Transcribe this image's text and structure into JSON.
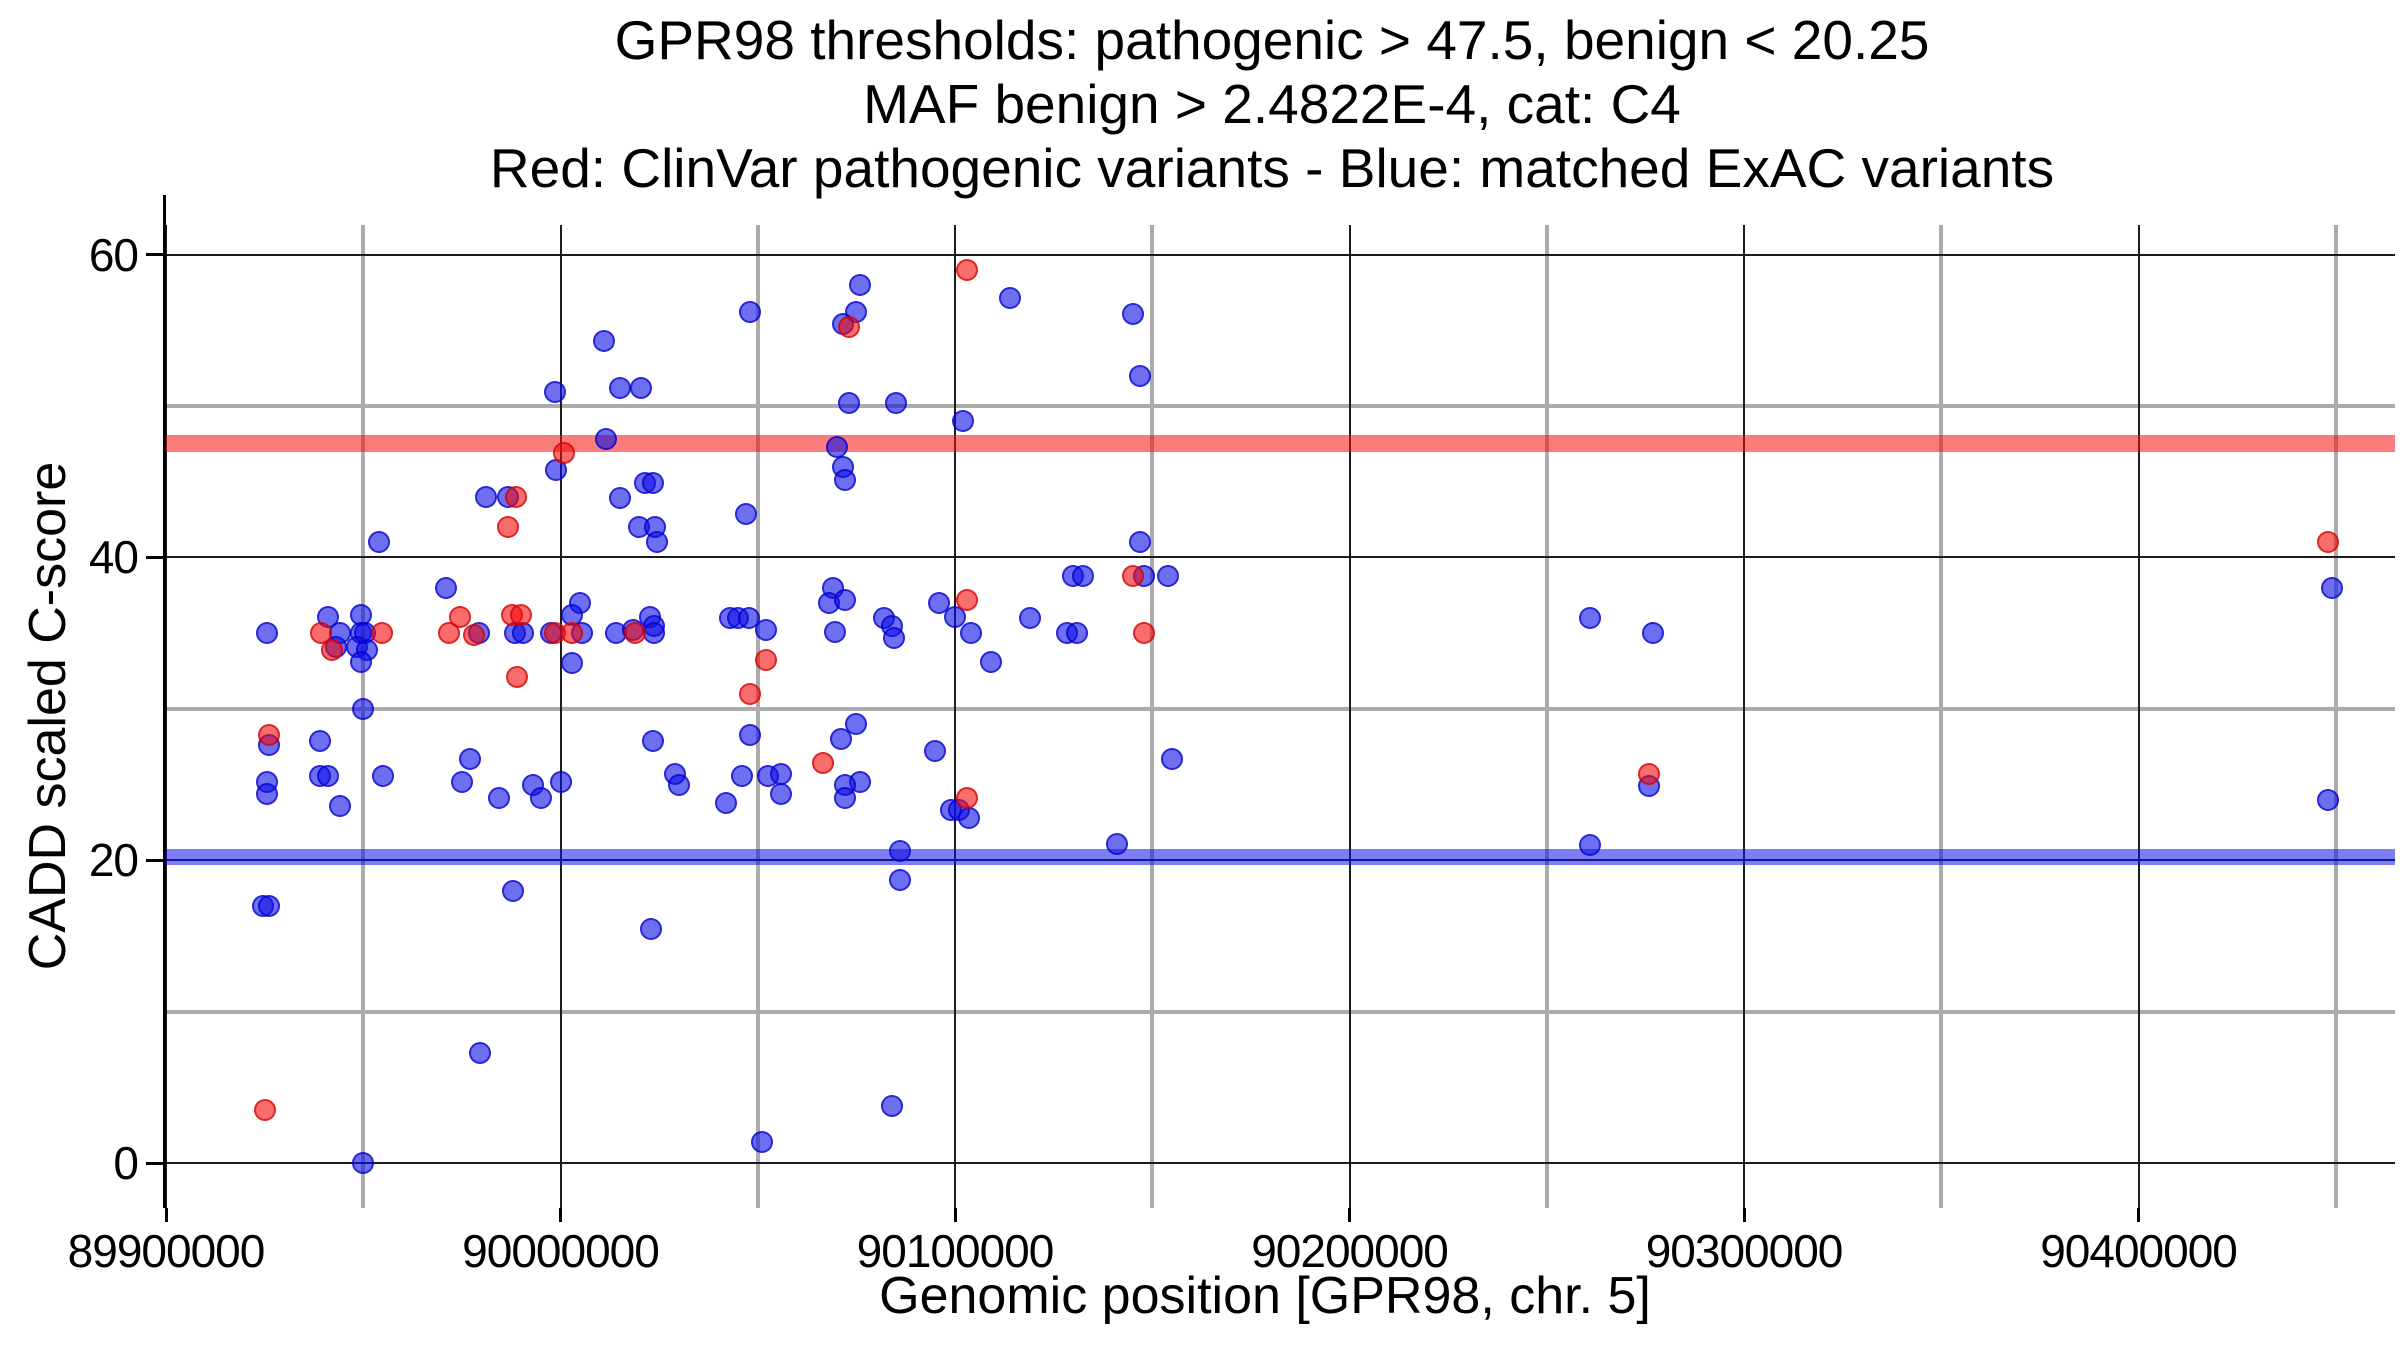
{
  "chart_data": {
    "type": "scatter",
    "title": [
      "GPR98 thresholds: pathogenic > 47.5, benign < 20.25",
      "MAF benign > 2.4822E-4, cat: C4",
      "Red: ClinVar pathogenic variants - Blue: matched ExAC variants"
    ],
    "xlabel": "Genomic position [GPR98, chr. 5]",
    "ylabel": "CADD scaled C-score",
    "xlim": [
      89900000,
      90465000
    ],
    "ylim": [
      -2.95,
      61.95
    ],
    "x_ticks": [
      89900000,
      90000000,
      90100000,
      90200000,
      90300000,
      90400000
    ],
    "x_minor_ticks": [
      89950000,
      90050000,
      90150000,
      90250000,
      90350000,
      90450000
    ],
    "y_ticks": [
      0,
      20,
      40,
      60
    ],
    "y_minor_ticks": [
      10,
      30,
      50
    ],
    "grid": "on",
    "legend_position": "none",
    "hlines": [
      {
        "name": "pathogenic-threshold",
        "value": 47.5,
        "color": "rgba(243,17,17,0.55)",
        "thickness_px": 17
      },
      {
        "name": "benign-threshold",
        "value": 20.25,
        "color": "rgba(18,18,235,0.55)",
        "thickness_px": 16
      }
    ],
    "series": [
      {
        "name": "matched ExAC variants",
        "color_key": "blue",
        "points": [
          [
            90011000,
            54.3
          ],
          [
            89998500,
            50.9
          ],
          [
            90015000,
            51.2
          ],
          [
            90020500,
            51.2
          ],
          [
            90048000,
            56.2
          ],
          [
            90076000,
            58
          ],
          [
            90075000,
            56.2
          ],
          [
            90071500,
            55.4
          ],
          [
            90114000,
            57.1
          ],
          [
            90145000,
            56.1
          ],
          [
            90147000,
            52
          ],
          [
            90011500,
            47.8
          ],
          [
            89998800,
            45.8
          ],
          [
            90021500,
            44.9
          ],
          [
            90023500,
            44.9
          ],
          [
            89981000,
            44
          ],
          [
            89986700,
            44
          ],
          [
            90015000,
            43.9
          ],
          [
            90020000,
            42
          ],
          [
            90024000,
            42
          ],
          [
            90024500,
            41
          ],
          [
            89954000,
            41
          ],
          [
            90073000,
            50.2
          ],
          [
            90085000,
            50.2
          ],
          [
            90102000,
            49
          ],
          [
            90070000,
            47.3
          ],
          [
            90071500,
            46
          ],
          [
            90072000,
            45.1
          ],
          [
            90047000,
            42.9
          ],
          [
            90147000,
            41
          ],
          [
            90449000,
            38
          ],
          [
            89971000,
            38
          ],
          [
            90130000,
            38.8
          ],
          [
            90132500,
            38.8
          ],
          [
            90148000,
            38.8
          ],
          [
            90154000,
            38.8
          ],
          [
            90069000,
            38
          ],
          [
            90068000,
            37
          ],
          [
            90072000,
            37.2
          ],
          [
            90005000,
            37
          ],
          [
            90096000,
            37
          ],
          [
            90100000,
            36.1
          ],
          [
            90104000,
            35
          ],
          [
            89925500,
            35
          ],
          [
            89941000,
            36.1
          ],
          [
            89943000,
            34.1
          ],
          [
            89944000,
            35
          ],
          [
            89949500,
            36.2
          ],
          [
            89949500,
            35
          ],
          [
            89950500,
            35
          ],
          [
            89948500,
            34.1
          ],
          [
            89951000,
            33.9
          ],
          [
            89949500,
            33.1
          ],
          [
            89979400,
            35
          ],
          [
            89988500,
            35
          ],
          [
            89990500,
            35
          ],
          [
            89997500,
            35
          ],
          [
            90005500,
            35
          ],
          [
            90003000,
            36.2
          ],
          [
            90003000,
            33
          ],
          [
            90014000,
            35
          ],
          [
            90018500,
            35.2
          ],
          [
            90022600,
            36.1
          ],
          [
            90023800,
            35.5
          ],
          [
            90023800,
            35
          ],
          [
            90043000,
            36
          ],
          [
            90045000,
            36
          ],
          [
            90047800,
            36
          ],
          [
            90052000,
            35.2
          ],
          [
            90082000,
            36
          ],
          [
            90084000,
            35.5
          ],
          [
            90084500,
            34.7
          ],
          [
            90069500,
            35.1
          ],
          [
            90119000,
            36
          ],
          [
            90128500,
            35
          ],
          [
            90131000,
            35
          ],
          [
            90261000,
            36
          ],
          [
            90277000,
            35
          ],
          [
            90109000,
            33.1
          ],
          [
            89926000,
            27.6
          ],
          [
            89925500,
            25.2
          ],
          [
            89925500,
            24.4
          ],
          [
            89939000,
            27.9
          ],
          [
            89939000,
            25.6
          ],
          [
            89941000,
            25.6
          ],
          [
            89944000,
            23.6
          ],
          [
            89950000,
            30
          ],
          [
            89955000,
            25.6
          ],
          [
            89977000,
            26.7
          ],
          [
            89975000,
            25.2
          ],
          [
            89984500,
            24.1
          ],
          [
            89993000,
            25
          ],
          [
            89995000,
            24.1
          ],
          [
            90000000,
            25.2
          ],
          [
            90023500,
            27.9
          ],
          [
            90029000,
            25.7
          ],
          [
            90030000,
            25
          ],
          [
            90042000,
            23.8
          ],
          [
            90048000,
            28.3
          ],
          [
            90075000,
            29
          ],
          [
            90071000,
            28
          ],
          [
            90046000,
            25.6
          ],
          [
            90052500,
            25.6
          ],
          [
            90056000,
            25.7
          ],
          [
            90056000,
            24.4
          ],
          [
            90076000,
            25.2
          ],
          [
            90072000,
            25
          ],
          [
            90072000,
            24.1
          ],
          [
            90095000,
            27.2
          ],
          [
            90099000,
            23.3
          ],
          [
            90101000,
            23.3
          ],
          [
            90103500,
            22.8
          ],
          [
            90141000,
            21.1
          ],
          [
            90086000,
            20.6
          ],
          [
            90086000,
            18.7
          ],
          [
            90155000,
            26.7
          ],
          [
            90276000,
            24.9
          ],
          [
            90261000,
            21
          ],
          [
            90448000,
            24
          ],
          [
            89924500,
            17
          ],
          [
            89926000,
            17
          ],
          [
            89988000,
            18
          ],
          [
            90023000,
            15.5
          ],
          [
            89979500,
            7.3
          ],
          [
            89950000,
            0
          ],
          [
            90084000,
            3.8
          ],
          [
            90051000,
            1.4
          ]
        ]
      },
      {
        "name": "ClinVar pathogenic variants",
        "color_key": "red",
        "points": [
          [
            90103000,
            59
          ],
          [
            90073000,
            55.2
          ],
          [
            90001000,
            46.9
          ],
          [
            89988800,
            44
          ],
          [
            89986700,
            42
          ],
          [
            90448000,
            41
          ],
          [
            90145000,
            38.8
          ],
          [
            90103000,
            37.2
          ],
          [
            89939200,
            35
          ],
          [
            89942000,
            33.9
          ],
          [
            89954800,
            35
          ],
          [
            89971800,
            35
          ],
          [
            89974500,
            36.1
          ],
          [
            89978000,
            34.9
          ],
          [
            89987800,
            36.2
          ],
          [
            89990000,
            36.2
          ],
          [
            89989000,
            32.1
          ],
          [
            89998500,
            35
          ],
          [
            90003000,
            35
          ],
          [
            90019000,
            35
          ],
          [
            90052000,
            33.2
          ],
          [
            90148000,
            35
          ],
          [
            89926000,
            28.3
          ],
          [
            90048000,
            31
          ],
          [
            90066500,
            26.4
          ],
          [
            90103000,
            24.1
          ],
          [
            90276000,
            25.7
          ],
          [
            89925000,
            3.5
          ]
        ]
      }
    ]
  },
  "colors": {
    "blue_fill": "rgba(13,13,230,0.60)",
    "blue_stroke": "rgba(0,0,200,0.65)",
    "red_fill": "rgba(243,10,10,0.60)",
    "red_stroke": "rgba(205,0,0,0.65)",
    "grid_major": "#1c1c1c",
    "grid_minor": "#acacac",
    "axis": "#000000"
  }
}
